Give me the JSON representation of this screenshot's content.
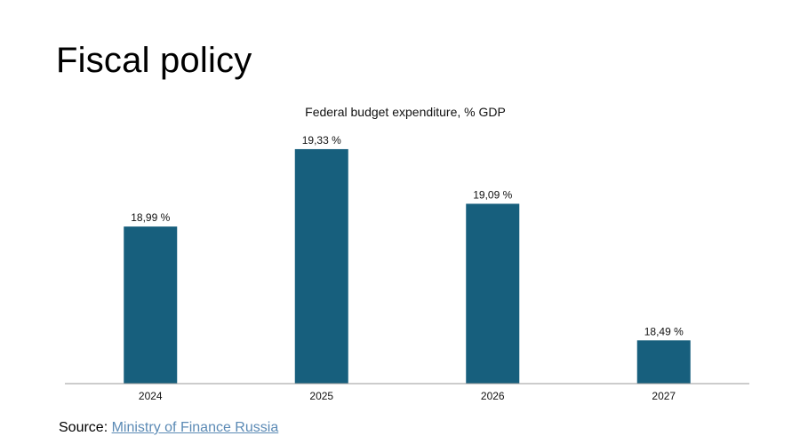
{
  "page": {
    "title": "Fiscal policy"
  },
  "source": {
    "label": "Source:",
    "link_text": "Ministry of Finance Russia"
  },
  "colors": {
    "bar": "#175f7d",
    "axis": "#999999",
    "link": "#5b8ab5"
  },
  "chart_data": {
    "type": "bar",
    "title": "Federal budget expenditure, % GDP",
    "categories": [
      "2024",
      "2025",
      "2026",
      "2027"
    ],
    "values": [
      18.99,
      19.33,
      19.09,
      18.49
    ],
    "value_labels": [
      "18,99 %",
      "19,33 %",
      "19,09 %",
      "18,49 %"
    ],
    "xlabel": "",
    "ylabel": "",
    "ylim": [
      18.3,
      19.4
    ],
    "grid": false,
    "legend": "none"
  }
}
